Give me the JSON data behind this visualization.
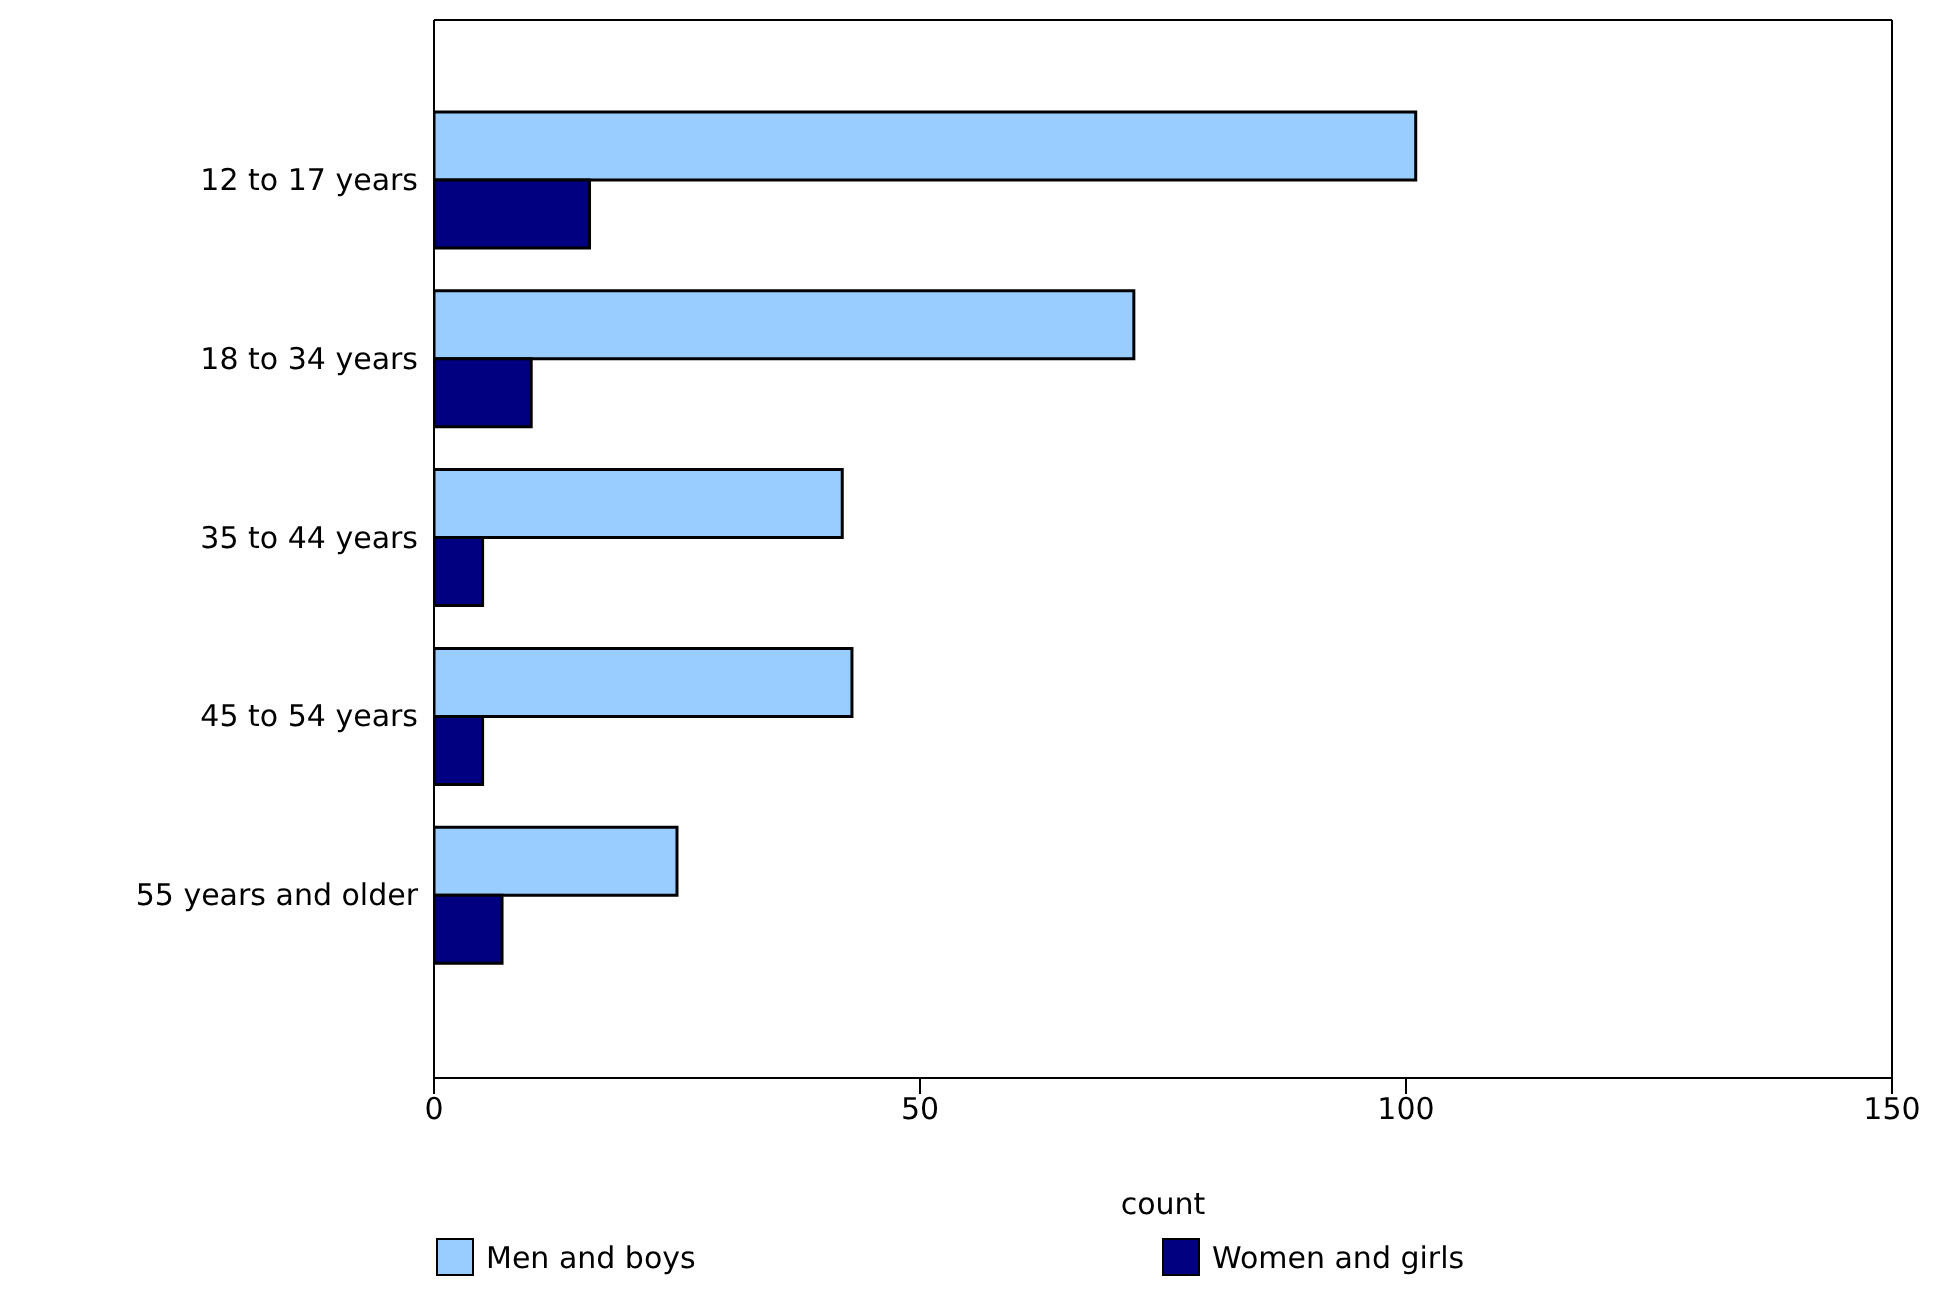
{
  "chart_data": {
    "type": "bar",
    "orientation": "horizontal",
    "categories": [
      "12 to 17 years",
      "18 to 34 years",
      "35 to 44 years",
      "45 to 54 years",
      "55 years and older"
    ],
    "series": [
      {
        "name": "Men and boys",
        "color": "#99ccff",
        "values": [
          101,
          72,
          42,
          43,
          25
        ]
      },
      {
        "name": "Women and girls",
        "color": "#000080",
        "values": [
          16,
          10,
          5,
          5,
          7
        ]
      }
    ],
    "xlabel": "count",
    "xlim": [
      0,
      150
    ],
    "xticks": [
      0,
      50,
      100,
      150
    ],
    "legend": "bottom"
  }
}
